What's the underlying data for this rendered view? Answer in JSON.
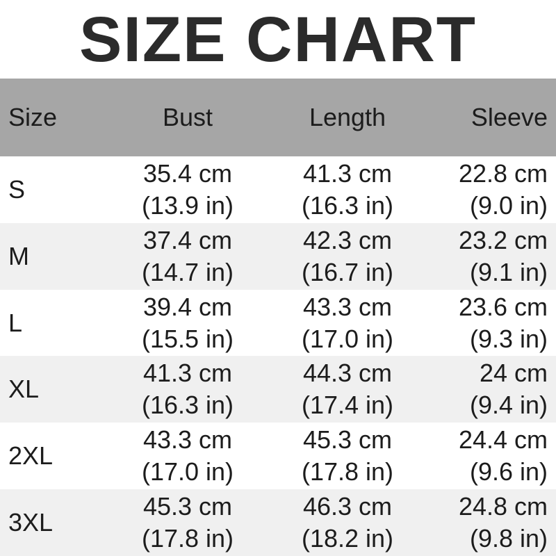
{
  "title": "SIZE CHART",
  "colors": {
    "title_text": "#2b2b2b",
    "header_bg": "#a6a6a6",
    "header_text": "#1c1c1c",
    "row_bg": "#ffffff",
    "row_alt_bg": "#f0f0f0",
    "body_text": "#1c1c1c"
  },
  "table": {
    "headers": {
      "size": "Size",
      "bust": "Bust",
      "length": "Length",
      "sleeve": "Sleeve"
    },
    "rows": [
      {
        "size": "S",
        "bust_cm": "35.4 cm",
        "bust_in": "(13.9 in)",
        "length_cm": "41.3 cm",
        "length_in": "(16.3 in)",
        "sleeve_cm": "22.8 cm",
        "sleeve_in": "(9.0 in)"
      },
      {
        "size": "M",
        "bust_cm": "37.4 cm",
        "bust_in": "(14.7 in)",
        "length_cm": "42.3 cm",
        "length_in": "(16.7 in)",
        "sleeve_cm": "23.2 cm",
        "sleeve_in": "(9.1 in)"
      },
      {
        "size": "L",
        "bust_cm": "39.4 cm",
        "bust_in": "(15.5 in)",
        "length_cm": "43.3 cm",
        "length_in": "(17.0 in)",
        "sleeve_cm": "23.6 cm",
        "sleeve_in": "(9.3 in)"
      },
      {
        "size": "XL",
        "bust_cm": "41.3 cm",
        "bust_in": "(16.3 in)",
        "length_cm": "44.3 cm",
        "length_in": "(17.4 in)",
        "sleeve_cm": "24 cm",
        "sleeve_in": "(9.4 in)"
      },
      {
        "size": "2XL",
        "bust_cm": "43.3 cm",
        "bust_in": "(17.0 in)",
        "length_cm": "45.3 cm",
        "length_in": "(17.8 in)",
        "sleeve_cm": "24.4 cm",
        "sleeve_in": "(9.6 in)"
      },
      {
        "size": "3XL",
        "bust_cm": "45.3 cm",
        "bust_in": "(17.8 in)",
        "length_cm": "46.3 cm",
        "length_in": "(18.2 in)",
        "sleeve_cm": "24.8 cm",
        "sleeve_in": "(9.8 in)"
      }
    ]
  },
  "chart_data": {
    "type": "table",
    "title": "SIZE CHART",
    "columns": [
      "Size",
      "Bust",
      "Length",
      "Sleeve"
    ],
    "rows": [
      [
        "S",
        "35.4 cm (13.9 in)",
        "41.3 cm (16.3 in)",
        "22.8 cm (9.0 in)"
      ],
      [
        "M",
        "37.4 cm (14.7 in)",
        "42.3 cm (16.7 in)",
        "23.2 cm (9.1 in)"
      ],
      [
        "L",
        "39.4 cm (15.5 in)",
        "43.3 cm (17.0 in)",
        "23.6 cm (9.3 in)"
      ],
      [
        "XL",
        "41.3 cm (16.3 in)",
        "44.3 cm (17.4 in)",
        "24 cm (9.4 in)"
      ],
      [
        "2XL",
        "43.3 cm (17.0 in)",
        "45.3 cm (17.8 in)",
        "24.4 cm (9.6 in)"
      ],
      [
        "3XL",
        "45.3 cm (17.8 in)",
        "46.3 cm (18.2 in)",
        "24.8 cm (9.8 in)"
      ]
    ]
  }
}
